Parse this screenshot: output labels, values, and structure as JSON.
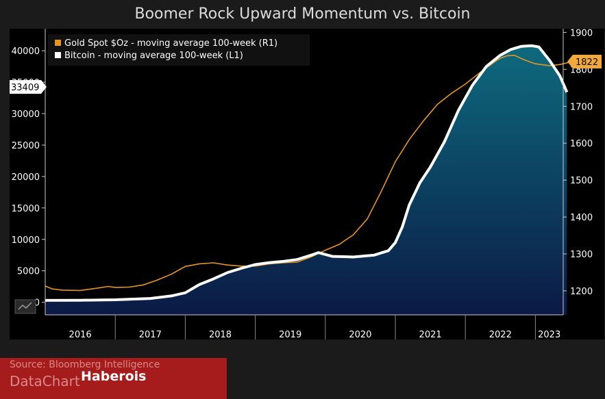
{
  "title": "Boomer Rock Upward Momentum vs. Bitcoin",
  "colors": {
    "background": "#1b1b1b",
    "plot": "#000000",
    "gold": "#e8961e",
    "bitcoin": "#ffffff",
    "area_top": "#0e6a7e",
    "area_bottom": "#0b1a45",
    "footer": "#a61b1b"
  },
  "chart_data": {
    "type": "line",
    "x_labels": [
      "2016",
      "2017",
      "2018",
      "2019",
      "2020",
      "2021",
      "2022",
      "2023"
    ],
    "left_axis": {
      "ylim": [
        -2000,
        43500
      ],
      "ticks": [
        0,
        5000,
        10000,
        15000,
        20000,
        25000,
        30000,
        35000,
        40000
      ]
    },
    "right_axis": {
      "ylim": [
        1135,
        1910
      ],
      "ticks": [
        1200,
        1300,
        1400,
        1500,
        1600,
        1700,
        1800,
        1900
      ]
    },
    "series": [
      {
        "name": "Gold Spot $Oz - moving average 100-week (R1)",
        "axis": "right",
        "color": "#e8961e",
        "points": [
          [
            2015.5,
            1213
          ],
          [
            2015.6,
            1205
          ],
          [
            2015.75,
            1202
          ],
          [
            2016.0,
            1201
          ],
          [
            2016.2,
            1206
          ],
          [
            2016.4,
            1212
          ],
          [
            2016.5,
            1209
          ],
          [
            2016.7,
            1210
          ],
          [
            2016.9,
            1216
          ],
          [
            2017.1,
            1229
          ],
          [
            2017.3,
            1245
          ],
          [
            2017.5,
            1266
          ],
          [
            2017.7,
            1273
          ],
          [
            2017.9,
            1276
          ],
          [
            2018.1,
            1270
          ],
          [
            2018.3,
            1267
          ],
          [
            2018.5,
            1267
          ],
          [
            2018.7,
            1273
          ],
          [
            2018.9,
            1276
          ],
          [
            2019.1,
            1278
          ],
          [
            2019.3,
            1292
          ],
          [
            2019.5,
            1310
          ],
          [
            2019.7,
            1326
          ],
          [
            2019.9,
            1352
          ],
          [
            2020.1,
            1395
          ],
          [
            2020.3,
            1470
          ],
          [
            2020.5,
            1550
          ],
          [
            2020.7,
            1610
          ],
          [
            2020.9,
            1660
          ],
          [
            2021.1,
            1705
          ],
          [
            2021.3,
            1735
          ],
          [
            2021.5,
            1760
          ],
          [
            2021.7,
            1790
          ],
          [
            2021.9,
            1818
          ],
          [
            2022.0,
            1830
          ],
          [
            2022.1,
            1837
          ],
          [
            2022.2,
            1838
          ],
          [
            2022.35,
            1825
          ],
          [
            2022.5,
            1815
          ],
          [
            2022.7,
            1810
          ],
          [
            2022.85,
            1813
          ],
          [
            2023.05,
            1822
          ]
        ]
      },
      {
        "name": "Bitcoin - moving average 100-week (L1)",
        "axis": "left",
        "color": "#ffffff",
        "points": [
          [
            2015.5,
            300
          ],
          [
            2016.0,
            320
          ],
          [
            2016.5,
            400
          ],
          [
            2017.0,
            600
          ],
          [
            2017.3,
            1000
          ],
          [
            2017.5,
            1500
          ],
          [
            2017.7,
            2800
          ],
          [
            2017.9,
            3700
          ],
          [
            2018.1,
            4700
          ],
          [
            2018.3,
            5400
          ],
          [
            2018.5,
            6000
          ],
          [
            2018.7,
            6300
          ],
          [
            2018.9,
            6500
          ],
          [
            2019.1,
            6800
          ],
          [
            2019.3,
            7500
          ],
          [
            2019.4,
            7900
          ],
          [
            2019.6,
            7300
          ],
          [
            2019.9,
            7200
          ],
          [
            2020.2,
            7500
          ],
          [
            2020.4,
            8200
          ],
          [
            2020.5,
            9500
          ],
          [
            2020.6,
            12000
          ],
          [
            2020.7,
            15500
          ],
          [
            2020.85,
            19000
          ],
          [
            2021.0,
            21500
          ],
          [
            2021.2,
            25500
          ],
          [
            2021.4,
            30500
          ],
          [
            2021.6,
            34500
          ],
          [
            2021.8,
            37500
          ],
          [
            2022.0,
            39300
          ],
          [
            2022.15,
            40200
          ],
          [
            2022.3,
            40700
          ],
          [
            2022.45,
            40800
          ],
          [
            2022.55,
            40600
          ],
          [
            2022.7,
            38500
          ],
          [
            2022.85,
            36000
          ],
          [
            2022.95,
            33409
          ]
        ]
      }
    ],
    "last_value_labels": {
      "left": "33409",
      "right": "1822"
    }
  },
  "footer": {
    "source": "Source: Bloomberg Intelligence",
    "datachart": "DataChart",
    "brand": "Haberois"
  }
}
